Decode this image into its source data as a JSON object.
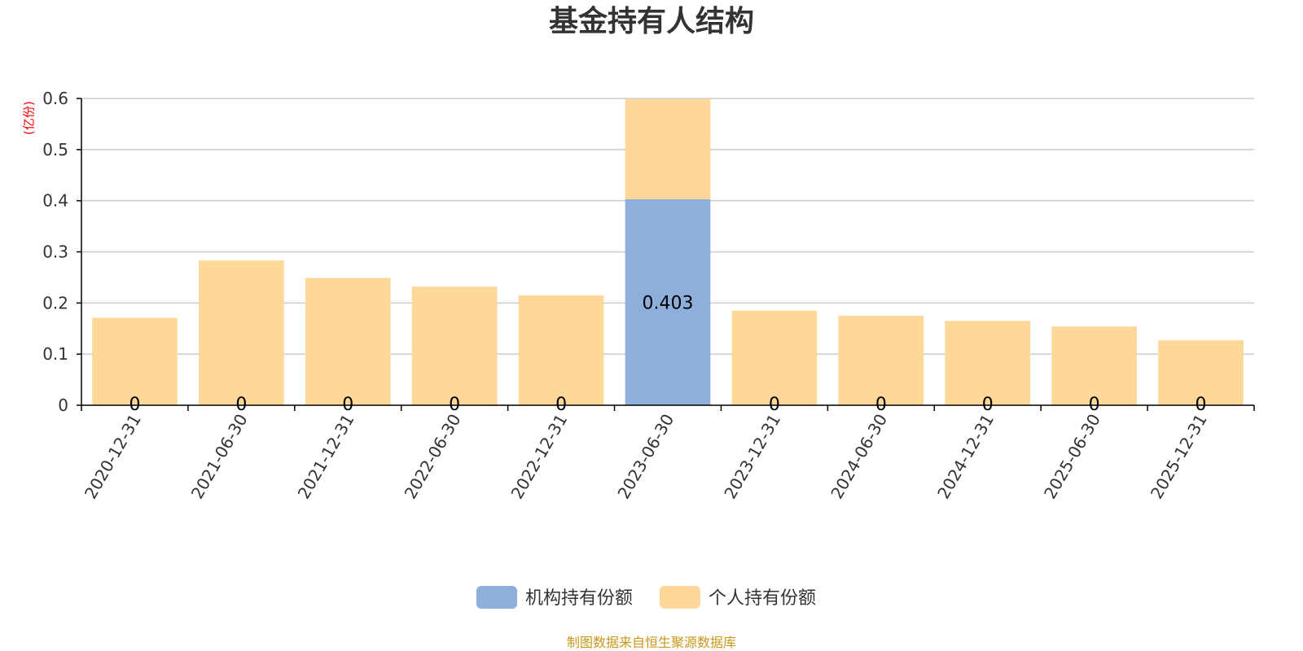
{
  "chart_data": {
    "type": "bar",
    "stacked": true,
    "title": "基金持有人结构",
    "unit_label": "(亿份)",
    "categories": [
      "2020-12-31",
      "2021-06-30",
      "2021-12-31",
      "2022-06-30",
      "2022-12-31",
      "2023-06-30",
      "2023-12-31",
      "2024-06-30",
      "2024-12-31",
      "2025-06-30",
      "2025-12-31"
    ],
    "series": [
      {
        "name": "机构持有份额",
        "color": "#8eaedb",
        "values": [
          0,
          0,
          0,
          0,
          0,
          0.403,
          0,
          0,
          0,
          0,
          0
        ],
        "data_labels": [
          "0",
          "0",
          "0",
          "0",
          "0",
          "0.403",
          "0",
          "0",
          "0",
          "0",
          "0"
        ]
      },
      {
        "name": "个人持有份额",
        "color": "#fdd898",
        "values": [
          0.171,
          0.283,
          0.249,
          0.232,
          0.215,
          0.196,
          0.185,
          0.175,
          0.165,
          0.154,
          0.127
        ]
      }
    ],
    "ylim": [
      0,
      0.6
    ],
    "yticks": [
      "0",
      "0.1",
      "0.2",
      "0.3",
      "0.4",
      "0.5",
      "0.6"
    ],
    "grid": true,
    "legend_position": "bottom-center"
  },
  "source_text": "制图数据来自恒生聚源数据库"
}
